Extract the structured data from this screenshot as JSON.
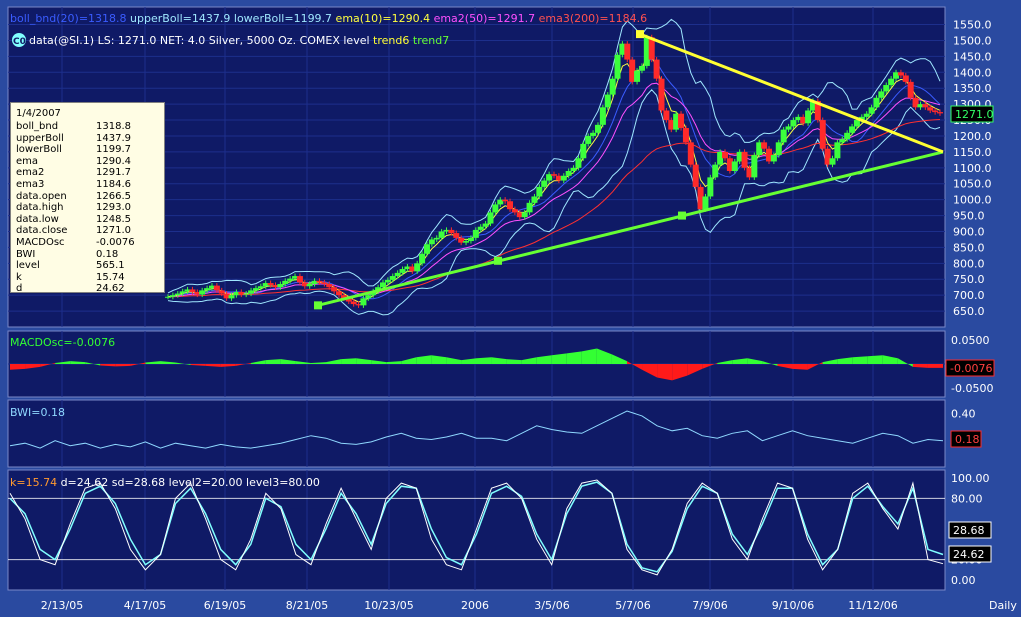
{
  "header": {
    "line1": [
      {
        "text": "boll_bnd(20)=1318.8",
        "color": "#3a5cff"
      },
      {
        "text": "upperBoll=1437.9",
        "color": "#9fe7ff"
      },
      {
        "text": "lowerBoll=1199.7",
        "color": "#9fe7ff"
      },
      {
        "text": "ema(10)=1290.4",
        "color": "#ffff40"
      },
      {
        "text": "ema2(50)=1291.7",
        "color": "#ff50ff"
      },
      {
        "text": "ema3(200)=1184.6",
        "color": "#ff5050"
      }
    ],
    "line2_badge": "C0",
    "line2_text": "data(@SI.1) LS: 1271.0  NET: 4.0   Silver, 5000 Oz. COMEX level",
    "line2_trend6": "trend6",
    "line2_trend7": "trend7"
  },
  "tooltip": {
    "date": "1/4/2007",
    "rows": [
      {
        "k": "boll_bnd",
        "v": "1318.8"
      },
      {
        "k": "upperBoll",
        "v": "1437.9"
      },
      {
        "k": "lowerBoll",
        "v": "1199.7"
      },
      {
        "k": "ema",
        "v": "1290.4"
      },
      {
        "k": "ema2",
        "v": "1291.7"
      },
      {
        "k": "ema3",
        "v": "1184.6"
      },
      {
        "k": "data.open",
        "v": "1266.5"
      },
      {
        "k": "data.high",
        "v": "1293.0"
      },
      {
        "k": "data.low",
        "v": "1248.5"
      },
      {
        "k": "data.close",
        "v": "1271.0"
      },
      {
        "k": "MACDOsc",
        "v": "-0.0076"
      },
      {
        "k": "BWI",
        "v": "0.18"
      },
      {
        "k": "level",
        "v": "565.1"
      },
      {
        "k": "k",
        "v": "15.74"
      },
      {
        "k": "d",
        "v": "24.62"
      }
    ]
  },
  "x_labels": [
    "2/13/05",
    "4/17/05",
    "6/19/05",
    "8/21/05",
    "10/23/05",
    "2006",
    "3/5/06",
    "5/7/06",
    "7/9/06",
    "9/10/06",
    "11/12/06"
  ],
  "periodicity": "Daily",
  "colors": {
    "background": "#2a4aa0",
    "panel": "#0f1a66",
    "grid": "#1d2f8c",
    "up_candle": "#3cff3c",
    "down_candle": "#ff2a2a",
    "upper_boll": "#9fe7ff",
    "boll_mid": "#3a5cff",
    "ema": "#ffff40",
    "ema2": "#ff50ff",
    "ema3": "#ff3030",
    "trend_support": "#66ff33",
    "trend_resist": "#ffff33",
    "macd_pos": "#33ff33",
    "macd_neg": "#ff1a1a",
    "bwi": "#8fd8ff",
    "stoch_k": "#ffffff",
    "stoch_d": "#80ffff",
    "stoch_header_k": "#ff9a30",
    "price_box": "#33ff66"
  },
  "chart_data": [
    {
      "type": "candlestick",
      "series_label": "data(@SI.1) Silver, 5000 Oz. COMEX",
      "ylim": [
        600,
        1580
      ],
      "y_ticks": [
        "1550.0",
        "1500.0",
        "1450.0",
        "1400.0",
        "1350.0",
        "1300.0",
        "1250.0",
        "1200.0",
        "1150.0",
        "1100.0",
        "1050.0",
        "1000.0",
        "950.0",
        "900.0",
        "850.0",
        "800.0",
        "750.0",
        "700.0",
        "650.0"
      ],
      "last_price": "1271.0",
      "x": [
        0,
        20,
        40,
        60,
        80,
        100,
        120,
        140,
        160,
        180,
        200,
        220,
        240,
        260,
        280,
        300,
        320,
        340,
        360,
        380,
        400,
        420,
        440,
        460,
        480,
        500,
        520,
        540,
        560,
        580,
        600,
        620,
        640,
        660,
        680,
        700,
        720,
        740,
        760,
        780,
        800,
        820,
        840,
        860,
        880,
        900,
        920,
        940,
        960,
        980,
        1000,
        1020,
        1040,
        1060,
        1080,
        1100,
        1120,
        1140,
        1160,
        1180,
        1200,
        1220,
        1240,
        1260,
        1280,
        1300,
        1320,
        1340,
        1360,
        1380,
        1400,
        1420,
        1440,
        1460,
        1480,
        1500,
        1520,
        1540,
        1560,
        1580,
        1600,
        1620,
        1640
      ],
      "close": [
        695,
        700,
        705,
        712,
        718,
        710,
        702,
        715,
        722,
        730,
        715,
        705,
        690,
        700,
        710,
        702,
        705,
        715,
        722,
        728,
        738,
        732,
        725,
        735,
        745,
        752,
        760,
        740,
        728,
        735,
        745,
        740,
        735,
        725,
        712,
        700,
        690,
        680,
        672,
        668,
        690,
        700,
        712,
        725,
        740,
        748,
        760,
        770,
        782,
        790,
        775,
        800,
        830,
        860,
        875,
        880,
        900,
        905,
        895,
        880,
        865,
        870,
        880,
        905,
        915,
        925,
        960,
        985,
        1000,
        995,
        970,
        960,
        945,
        960,
        990,
        1010,
        1040,
        1060,
        1080,
        1075,
        1060,
        1075,
        1090
      ],
      "close_tail": [
        1100,
        1130,
        1175,
        1200,
        1210,
        1235,
        1290,
        1330,
        1380,
        1455,
        1490,
        1440,
        1370,
        1405,
        1420,
        1510,
        1440,
        1380,
        1280,
        1250,
        1220,
        1270,
        1225,
        1180,
        1110,
        1040,
        970,
        1010,
        1070,
        1110,
        1150,
        1130,
        1090,
        1120,
        1150,
        1100,
        1070,
        1140,
        1180,
        1160,
        1120,
        1140,
        1180,
        1220,
        1230,
        1250,
        1260,
        1240,
        1280,
        1310,
        1250,
        1160,
        1110,
        1130,
        1180,
        1190,
        1210,
        1230,
        1250,
        1260,
        1270,
        1290,
        1320,
        1340,
        1360,
        1380,
        1400,
        1390,
        1370,
        1320,
        1290,
        1300,
        1290,
        1280,
        1275,
        1271
      ],
      "upper_boll": "envelope above close",
      "lower_boll": "envelope below close",
      "ema_10": "fast moving average",
      "ema2_50": "medium moving average",
      "ema3_200": "slow moving average",
      "trend6": {
        "from": [
          "5/7/06",
          1520
        ],
        "to": [
          "1/4/2007",
          1150
        ]
      },
      "trend7": {
        "from": [
          "8/21/05",
          668
        ],
        "to": [
          "1/4/2007",
          1150
        ]
      }
    },
    {
      "type": "area",
      "title": "MACDOsc=-0.0076",
      "y_ticks": [
        "0.0500",
        "-0.0500"
      ],
      "last_value": "-0.0076",
      "values": [
        -0.012,
        -0.01,
        -0.006,
        0.002,
        0.006,
        0.004,
        -0.003,
        -0.005,
        -0.004,
        0.003,
        0.006,
        0.003,
        -0.002,
        -0.004,
        -0.006,
        -0.004,
        0.002,
        0.008,
        0.01,
        0.006,
        0.002,
        0.004,
        0.01,
        0.012,
        0.008,
        0.004,
        0.006,
        0.014,
        0.018,
        0.014,
        0.008,
        0.012,
        0.014,
        0.01,
        0.008,
        0.014,
        0.018,
        0.022,
        0.026,
        0.032,
        0.02,
        0.006,
        -0.012,
        -0.028,
        -0.034,
        -0.024,
        -0.01,
        0.002,
        0.008,
        0.012,
        0.006,
        -0.004,
        -0.01,
        -0.012,
        0.004,
        0.01,
        0.014,
        0.016,
        0.018,
        0.012,
        -0.006,
        -0.008,
        -0.008
      ]
    },
    {
      "type": "line",
      "title": "BWI=0.18",
      "y_ticks": [
        "0.40"
      ],
      "last_value": "0.18",
      "values": [
        0.14,
        0.16,
        0.12,
        0.18,
        0.14,
        0.16,
        0.12,
        0.15,
        0.13,
        0.17,
        0.12,
        0.16,
        0.14,
        0.12,
        0.15,
        0.13,
        0.12,
        0.14,
        0.16,
        0.19,
        0.22,
        0.2,
        0.16,
        0.15,
        0.17,
        0.21,
        0.24,
        0.2,
        0.19,
        0.21,
        0.24,
        0.2,
        0.2,
        0.18,
        0.24,
        0.3,
        0.27,
        0.25,
        0.24,
        0.3,
        0.36,
        0.42,
        0.38,
        0.3,
        0.26,
        0.28,
        0.22,
        0.2,
        0.24,
        0.26,
        0.18,
        0.22,
        0.26,
        0.22,
        0.2,
        0.18,
        0.16,
        0.2,
        0.24,
        0.22,
        0.16,
        0.19,
        0.18
      ]
    },
    {
      "type": "line",
      "title": "k=15.74 d=24.62 sd=28.68 level2=20.00 level3=80.00",
      "y_ticks": [
        "100.00",
        "80.00",
        "20.00",
        "0.00"
      ],
      "levels": [
        20,
        80
      ],
      "last_values": {
        "sd": "28.68",
        "d": "24.62"
      },
      "k": [
        85,
        60,
        20,
        15,
        55,
        90,
        95,
        70,
        30,
        10,
        25,
        80,
        95,
        60,
        20,
        10,
        40,
        85,
        70,
        25,
        15,
        55,
        90,
        60,
        30,
        80,
        95,
        90,
        40,
        15,
        10,
        50,
        90,
        95,
        80,
        40,
        15,
        70,
        95,
        98,
        85,
        30,
        10,
        5,
        30,
        75,
        95,
        85,
        40,
        20,
        60,
        95,
        90,
        40,
        10,
        30,
        85,
        95,
        70,
        50,
        95,
        20,
        16
      ],
      "d": [
        80,
        65,
        30,
        20,
        50,
        85,
        92,
        75,
        40,
        15,
        25,
        75,
        90,
        65,
        30,
        15,
        35,
        80,
        72,
        35,
        20,
        50,
        85,
        65,
        35,
        75,
        92,
        90,
        50,
        22,
        15,
        45,
        85,
        92,
        82,
        45,
        20,
        65,
        92,
        96,
        85,
        35,
        12,
        8,
        28,
        70,
        92,
        85,
        45,
        25,
        55,
        90,
        90,
        45,
        15,
        30,
        80,
        92,
        72,
        55,
        90,
        30,
        25
      ]
    }
  ]
}
